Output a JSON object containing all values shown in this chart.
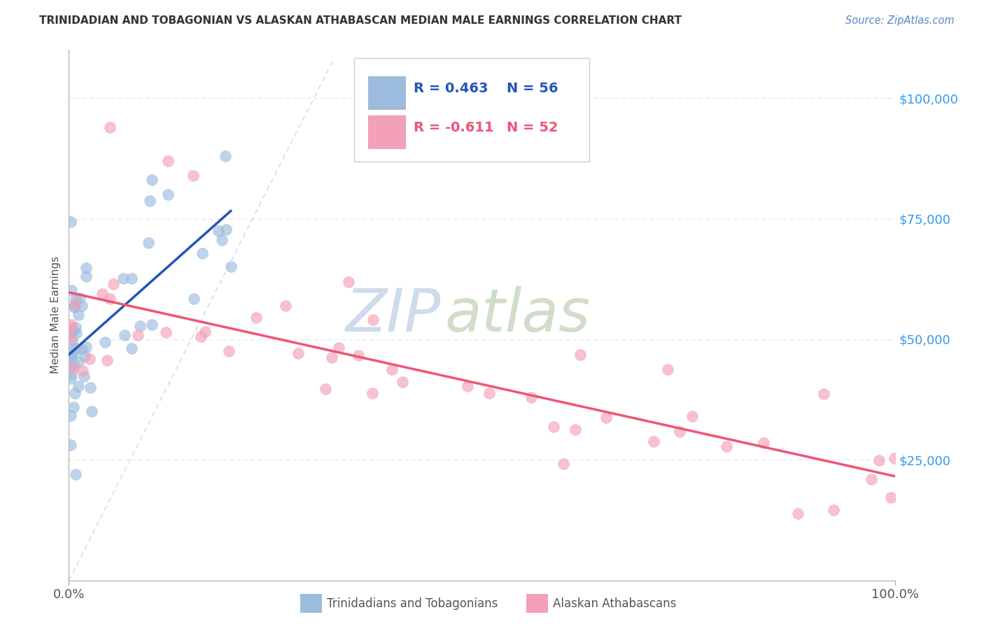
{
  "title": "TRINIDADIAN AND TOBAGONIAN VS ALASKAN ATHABASCAN MEDIAN MALE EARNINGS CORRELATION CHART",
  "source": "Source: ZipAtlas.com",
  "ylabel": "Median Male Earnings",
  "r_blue": 0.463,
  "n_blue": 56,
  "r_pink": -0.611,
  "n_pink": 52,
  "blue_scatter_color": "#9BBCDE",
  "pink_scatter_color": "#F4A0B8",
  "blue_line_color": "#2255BB",
  "pink_line_color": "#EE5577",
  "title_color": "#333333",
  "source_color": "#5588CC",
  "yaxis_color": "#3399EE",
  "xaxis_color": "#555555",
  "grid_color": "#DDDDEE",
  "watermark_zip_color": "#C8D8EC",
  "watermark_atlas_color": "#C8D8C8",
  "background_color": "#FFFFFF",
  "xlim": [
    0,
    100
  ],
  "ylim": [
    0,
    110000
  ],
  "yticks": [
    0,
    25000,
    50000,
    75000,
    100000
  ],
  "ytick_labels": [
    "",
    "$25,000",
    "$50,000",
    "$75,000",
    "$100,000"
  ],
  "legend_r_blue_text": "R = 0.463",
  "legend_n_blue_text": "N = 56",
  "legend_r_pink_text": "R = -0.611",
  "legend_n_pink_text": "N = 52",
  "bottom_label_blue": "Trinidadians and Tobagonians",
  "bottom_label_pink": "Alaskan Athabascans"
}
